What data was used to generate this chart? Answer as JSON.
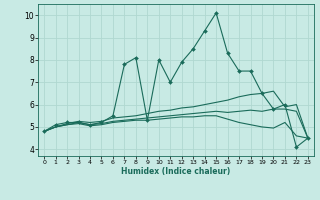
{
  "xlabel": "Humidex (Indice chaleur)",
  "xlim": [
    -0.5,
    23.5
  ],
  "ylim": [
    3.7,
    10.5
  ],
  "xticks": [
    0,
    1,
    2,
    3,
    4,
    5,
    6,
    7,
    8,
    9,
    10,
    11,
    12,
    13,
    14,
    15,
    16,
    17,
    18,
    19,
    20,
    21,
    22,
    23
  ],
  "yticks": [
    4,
    5,
    6,
    7,
    8,
    9,
    10
  ],
  "background_color": "#c8eae4",
  "grid_color": "#b0d8d0",
  "line_color": "#1a6b5a",
  "lines": [
    {
      "x": [
        0,
        1,
        2,
        3,
        4,
        5,
        6,
        7,
        8,
        9,
        10,
        11,
        12,
        13,
        14,
        15,
        16,
        17,
        18,
        19,
        20,
        21,
        22,
        23
      ],
      "y": [
        4.8,
        5.1,
        5.2,
        5.2,
        5.1,
        5.2,
        5.5,
        7.8,
        8.1,
        5.3,
        8.0,
        7.0,
        7.9,
        8.5,
        9.3,
        10.1,
        8.3,
        7.5,
        7.5,
        6.5,
        5.8,
        6.0,
        4.1,
        4.5
      ],
      "marker": "D",
      "markersize": 2.0
    },
    {
      "x": [
        0,
        1,
        2,
        3,
        4,
        5,
        6,
        7,
        8,
        9,
        10,
        11,
        12,
        13,
        14,
        15,
        16,
        17,
        18,
        19,
        20,
        21,
        22,
        23
      ],
      "y": [
        4.8,
        5.0,
        5.15,
        5.25,
        5.2,
        5.25,
        5.4,
        5.45,
        5.5,
        5.6,
        5.7,
        5.75,
        5.85,
        5.9,
        6.0,
        6.1,
        6.2,
        6.35,
        6.45,
        6.5,
        6.6,
        5.9,
        6.0,
        4.5
      ],
      "marker": null,
      "markersize": 0
    },
    {
      "x": [
        0,
        1,
        2,
        3,
        4,
        5,
        6,
        7,
        8,
        9,
        10,
        11,
        12,
        13,
        14,
        15,
        16,
        17,
        18,
        19,
        20,
        21,
        22,
        23
      ],
      "y": [
        4.8,
        5.0,
        5.1,
        5.2,
        5.1,
        5.15,
        5.25,
        5.3,
        5.35,
        5.4,
        5.45,
        5.5,
        5.55,
        5.6,
        5.65,
        5.7,
        5.65,
        5.7,
        5.75,
        5.7,
        5.8,
        5.8,
        5.7,
        4.5
      ],
      "marker": null,
      "markersize": 0
    },
    {
      "x": [
        0,
        1,
        2,
        3,
        4,
        5,
        6,
        7,
        8,
        9,
        10,
        11,
        12,
        13,
        14,
        15,
        16,
        17,
        18,
        19,
        20,
        21,
        22,
        23
      ],
      "y": [
        4.8,
        5.0,
        5.1,
        5.15,
        5.05,
        5.1,
        5.2,
        5.25,
        5.3,
        5.3,
        5.35,
        5.4,
        5.45,
        5.45,
        5.5,
        5.5,
        5.35,
        5.2,
        5.1,
        5.0,
        4.95,
        5.2,
        4.6,
        4.5
      ],
      "marker": null,
      "markersize": 0
    }
  ]
}
